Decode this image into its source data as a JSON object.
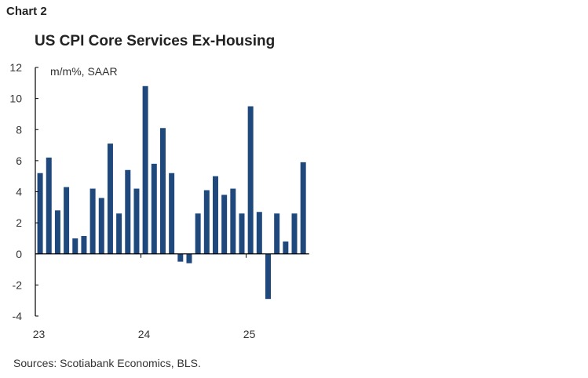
{
  "header": {
    "chart_label": "Chart 2"
  },
  "footer": {
    "sources": "Sources: Scotiabank Economics, BLS."
  },
  "chart_data": {
    "type": "bar",
    "title": "US CPI Core Services Ex-Housing",
    "ylabel": "m/m%, SAAR",
    "xlabel": "",
    "ylim": [
      -4,
      12
    ],
    "yticks": [
      12,
      10,
      8,
      6,
      4,
      2,
      0,
      -2,
      -4
    ],
    "xtick_labels": [
      "23",
      "24",
      "25"
    ],
    "grid": false,
    "bar_color": "#1f497d",
    "categories": [
      "Jan-23",
      "Feb-23",
      "Mar-23",
      "Apr-23",
      "May-23",
      "Jun-23",
      "Jul-23",
      "Aug-23",
      "Sep-23",
      "Oct-23",
      "Nov-23",
      "Dec-23",
      "Jan-24",
      "Feb-24",
      "Mar-24",
      "Apr-24",
      "May-24",
      "Jun-24",
      "Jul-24",
      "Aug-24",
      "Sep-24",
      "Oct-24",
      "Nov-24",
      "Dec-24",
      "Jan-25",
      "Feb-25",
      "Mar-25",
      "Apr-25",
      "May-25",
      "Jun-25",
      "Jul-25"
    ],
    "values": [
      5.2,
      6.2,
      2.8,
      4.3,
      1.0,
      1.15,
      4.2,
      3.6,
      7.1,
      2.6,
      5.4,
      4.2,
      10.8,
      5.8,
      8.1,
      5.2,
      -0.5,
      -0.6,
      2.6,
      4.1,
      5.0,
      3.8,
      4.2,
      2.6,
      9.5,
      2.7,
      -2.9,
      2.6,
      0.8,
      2.6,
      5.9
    ]
  }
}
